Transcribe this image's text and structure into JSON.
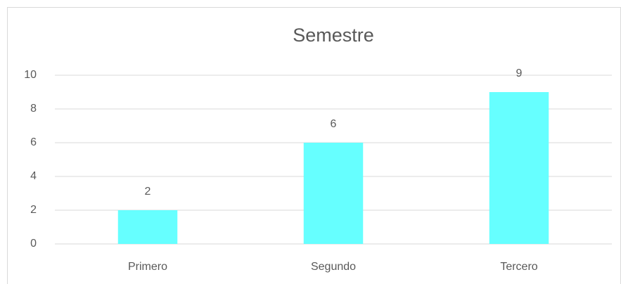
{
  "chart_data": {
    "type": "bar",
    "title": "Semestre",
    "categories": [
      "Primero",
      "Segundo",
      "Tercero"
    ],
    "values": [
      2,
      6,
      9
    ],
    "color": "#66ffff",
    "ylim": [
      0,
      10
    ],
    "yticks": [
      0,
      2,
      4,
      6,
      8,
      10
    ],
    "grid": true
  }
}
